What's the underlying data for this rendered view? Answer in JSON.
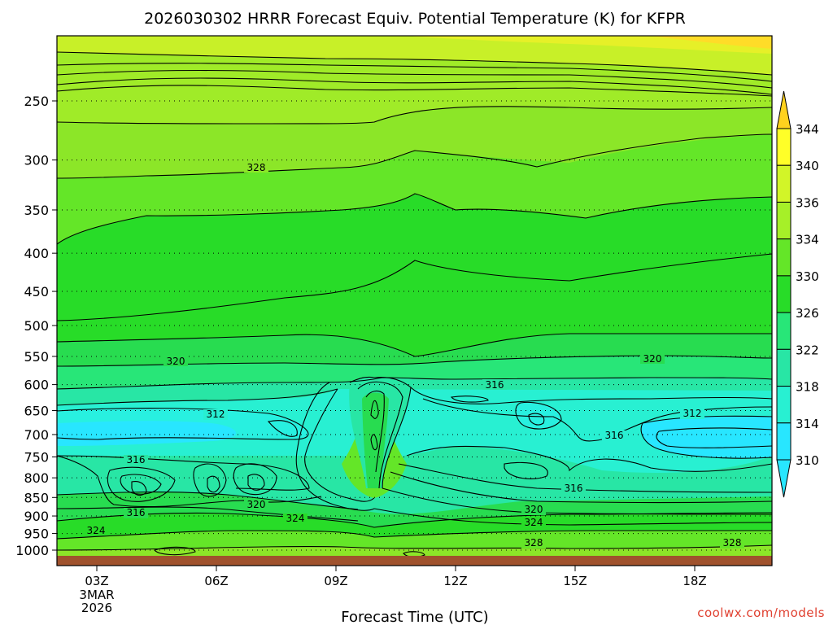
{
  "chart_data": {
    "type": "heatmap",
    "title": "2026030302 HRRR Forecast Equiv. Potential Temperature (K) for KFPR",
    "xlabel": "Forecast Time (UTC)",
    "ylabel": "",
    "y_ticks": [
      "250",
      "300",
      "350",
      "400",
      "450",
      "500",
      "550",
      "600",
      "650",
      "700",
      "750",
      "800",
      "850",
      "900",
      "950",
      "1000"
    ],
    "x_ticks": [
      {
        "label": "03Z",
        "sub": [
          "3MAR",
          "2026"
        ]
      },
      {
        "label": "06Z",
        "sub": []
      },
      {
        "label": "09Z",
        "sub": []
      },
      {
        "label": "12Z",
        "sub": []
      },
      {
        "label": "15Z",
        "sub": []
      },
      {
        "label": "18Z",
        "sub": []
      }
    ],
    "colorbar_levels": [
      "344",
      "340",
      "336",
      "334",
      "330",
      "326",
      "322",
      "318",
      "314",
      "310"
    ],
    "colorbar_colors": [
      "#ffd21e",
      "#ffff28",
      "#d2f528",
      "#a6f028",
      "#64e628",
      "#28dc28",
      "#28e678",
      "#28e6a5",
      "#28f0d2",
      "#28e6ff"
    ],
    "contour_labels": [
      "328",
      "320",
      "320",
      "316",
      "312",
      "312",
      "316",
      "316",
      "316",
      "316",
      "320",
      "324",
      "320",
      "324",
      "324",
      "328",
      "328"
    ],
    "ground_color": "#a0522d",
    "grid": true
  },
  "credit": "coolwx.com/models"
}
